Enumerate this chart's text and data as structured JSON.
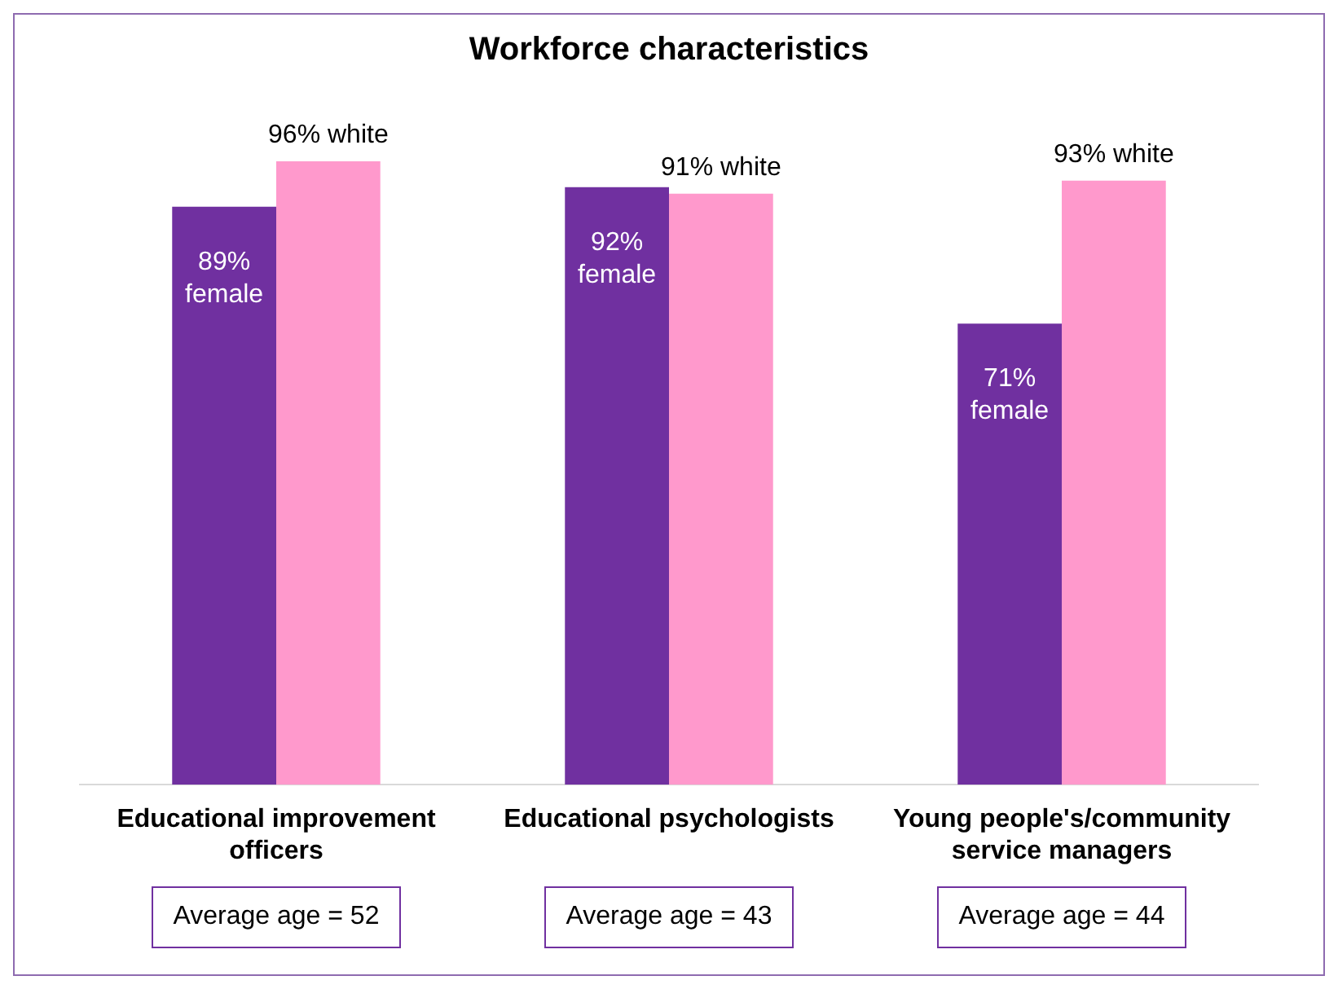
{
  "chart_data": {
    "type": "bar",
    "title": "Workforce characteristics",
    "categories": [
      "Educational improvement officers",
      "Educational psychologists",
      "Young people's/community service managers"
    ],
    "series": [
      {
        "color": "#7030a0",
        "values": [
          89,
          92,
          71
        ],
        "value_labels": [
          "89% female",
          "92% female",
          "71% female"
        ]
      },
      {
        "color": "#ff99cc",
        "values": [
          96,
          91,
          93
        ],
        "value_labels": [
          "96% white",
          "91% white",
          "93% white"
        ]
      }
    ],
    "annotations": [
      "Average age = 52",
      "Average age = 43",
      "Average age = 44"
    ],
    "grid": false,
    "legend": false
  }
}
